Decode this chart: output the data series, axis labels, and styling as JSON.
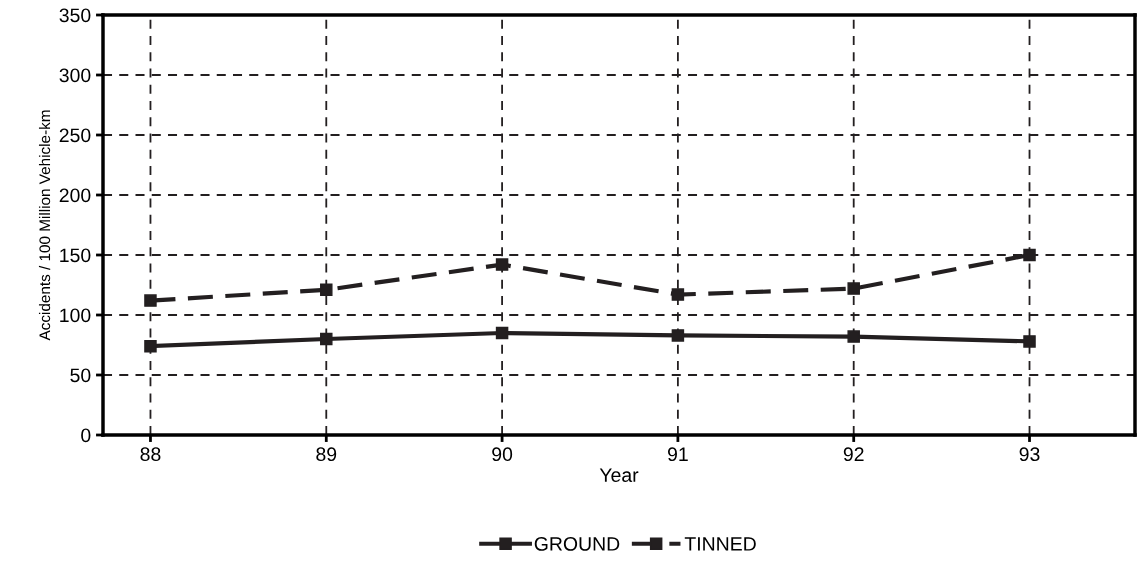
{
  "chart_data": {
    "type": "line",
    "xlabel": "Year",
    "ylabel": "Accidents / 100 Million Vehicle-km",
    "x": [
      88,
      89,
      90,
      91,
      92,
      93
    ],
    "xlim": [
      87.73,
      93.6
    ],
    "xticks": [
      88,
      89,
      90,
      91,
      92,
      93
    ],
    "ylim": [
      0,
      350
    ],
    "yticks": [
      0,
      50,
      100,
      150,
      200,
      250,
      300,
      350
    ],
    "grid": true,
    "legend": "bottom",
    "marker": "square",
    "series": [
      {
        "name": "GROUND",
        "color": "#231f20",
        "line_style": "solid",
        "values": [
          74,
          80,
          85,
          83,
          82,
          78
        ]
      },
      {
        "name": "TINNED",
        "color": "#231f20",
        "line_style": "dashed",
        "values": [
          112,
          121,
          142,
          117,
          122,
          150
        ]
      }
    ]
  }
}
